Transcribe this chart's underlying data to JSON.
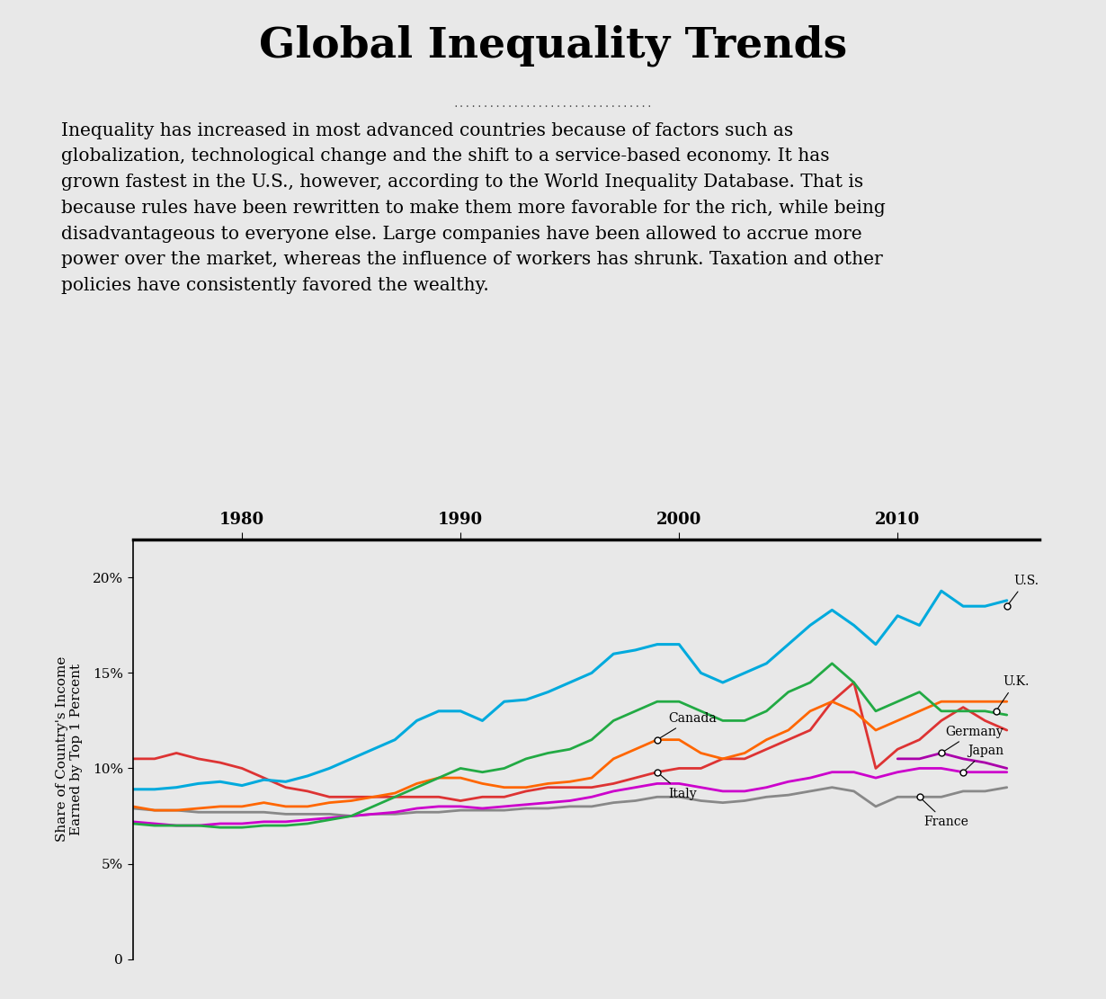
{
  "title": "Global Inequality Trends",
  "dotted_separator": ".................................",
  "body_text": "Inequality has increased in most advanced countries because of factors such as\nglobalization, technological change and the shift to a service-based economy. It has\ngrown fastest in the U.S., however, according to the World Inequality Database. That is\nbecause rules have been rewritten to make them more favorable for the rich, while being\ndisadvantageous to everyone else. Large companies have been allowed to accrue more\npower over the market, whereas the influence of workers has shrunk. Taxation and other\npolicies have consistently favored the wealthy.",
  "ylabel": "Share of Country's Income\nEarned by Top 1 Percent",
  "background_color": "#e8e8e8",
  "plot_bg_color": "#e8e8e8",
  "years": [
    1975,
    1976,
    1977,
    1978,
    1979,
    1980,
    1981,
    1982,
    1983,
    1984,
    1985,
    1986,
    1987,
    1988,
    1989,
    1990,
    1991,
    1992,
    1993,
    1994,
    1995,
    1996,
    1997,
    1998,
    1999,
    2000,
    2001,
    2002,
    2003,
    2004,
    2005,
    2006,
    2007,
    2008,
    2009,
    2010,
    2011,
    2012,
    2013,
    2014,
    2015
  ],
  "series": {
    "U.S.": {
      "color": "#00aadd",
      "values": [
        8.9,
        8.9,
        9.0,
        9.2,
        9.3,
        9.1,
        9.4,
        9.3,
        9.6,
        10.0,
        10.5,
        11.0,
        11.5,
        12.5,
        13.0,
        13.0,
        12.5,
        13.5,
        13.6,
        14.0,
        14.5,
        15.0,
        16.0,
        16.2,
        16.5,
        16.5,
        15.0,
        14.5,
        15.0,
        15.5,
        16.5,
        17.5,
        18.3,
        17.5,
        16.5,
        18.0,
        17.5,
        19.3,
        18.5,
        18.5,
        18.8
      ]
    },
    "U.K.": {
      "color": "#22aa44",
      "values": [
        7.1,
        7.0,
        7.0,
        7.0,
        6.9,
        6.9,
        7.0,
        7.0,
        7.1,
        7.3,
        7.5,
        8.0,
        8.5,
        9.0,
        9.5,
        10.0,
        9.8,
        10.0,
        10.5,
        10.8,
        11.0,
        11.5,
        12.5,
        13.0,
        13.5,
        13.5,
        13.0,
        12.5,
        12.5,
        13.0,
        14.0,
        14.5,
        15.5,
        14.5,
        13.0,
        13.5,
        14.0,
        13.0,
        13.0,
        13.0,
        12.8
      ]
    },
    "Canada": {
      "color": "#ff6600",
      "values": [
        8.0,
        7.8,
        7.8,
        7.9,
        8.0,
        8.0,
        8.2,
        8.0,
        8.0,
        8.2,
        8.3,
        8.5,
        8.7,
        9.2,
        9.5,
        9.5,
        9.2,
        9.0,
        9.0,
        9.2,
        9.3,
        9.5,
        10.5,
        11.0,
        11.5,
        11.5,
        10.8,
        10.5,
        10.8,
        11.5,
        12.0,
        13.0,
        13.5,
        13.0,
        12.0,
        12.5,
        13.0,
        13.5,
        13.5,
        13.5,
        13.5
      ]
    },
    "Italy": {
      "color": "#dd3333",
      "values": [
        10.5,
        10.5,
        10.8,
        10.5,
        10.3,
        10.0,
        9.5,
        9.0,
        8.8,
        8.5,
        8.5,
        8.5,
        8.5,
        8.5,
        8.5,
        8.3,
        8.5,
        8.5,
        8.8,
        9.0,
        9.0,
        9.0,
        9.2,
        9.5,
        9.8,
        10.0,
        10.0,
        10.5,
        10.5,
        11.0,
        11.5,
        12.0,
        13.5,
        14.5,
        10.0,
        11.0,
        11.5,
        12.5,
        13.2,
        12.5,
        12.0
      ]
    },
    "Germany": {
      "color": "#aa00aa",
      "values": [
        null,
        null,
        null,
        null,
        null,
        null,
        null,
        null,
        null,
        null,
        null,
        null,
        null,
        null,
        null,
        null,
        null,
        null,
        null,
        null,
        null,
        null,
        null,
        null,
        null,
        null,
        null,
        null,
        null,
        null,
        null,
        null,
        null,
        null,
        null,
        10.5,
        10.5,
        10.8,
        10.5,
        10.3,
        10.0
      ]
    },
    "Japan": {
      "color": "#cc00cc",
      "values": [
        7.2,
        7.1,
        7.0,
        7.0,
        7.1,
        7.1,
        7.2,
        7.2,
        7.3,
        7.4,
        7.5,
        7.6,
        7.7,
        7.9,
        8.0,
        8.0,
        7.9,
        8.0,
        8.1,
        8.2,
        8.3,
        8.5,
        8.8,
        9.0,
        9.2,
        9.2,
        9.0,
        8.8,
        8.8,
        9.0,
        9.3,
        9.5,
        9.8,
        9.8,
        9.5,
        9.8,
        10.0,
        10.0,
        9.8,
        9.8,
        9.8
      ]
    },
    "France": {
      "color": "#888888",
      "values": [
        7.9,
        7.8,
        7.8,
        7.7,
        7.7,
        7.7,
        7.7,
        7.6,
        7.6,
        7.6,
        7.5,
        7.6,
        7.6,
        7.7,
        7.7,
        7.8,
        7.8,
        7.8,
        7.9,
        7.9,
        8.0,
        8.0,
        8.2,
        8.3,
        8.5,
        8.5,
        8.3,
        8.2,
        8.3,
        8.5,
        8.6,
        8.8,
        9.0,
        8.8,
        8.0,
        8.5,
        8.5,
        8.5,
        8.8,
        8.8,
        9.0
      ]
    }
  },
  "ylim": [
    0,
    22
  ],
  "yticks": [
    0,
    5,
    10,
    15,
    20
  ],
  "ytick_labels": [
    "0",
    "5%",
    "10%",
    "15%",
    "20%"
  ],
  "xticks": [
    1980,
    1990,
    2000,
    2010
  ],
  "xmin": 1975,
  "xmax": 2016.5
}
